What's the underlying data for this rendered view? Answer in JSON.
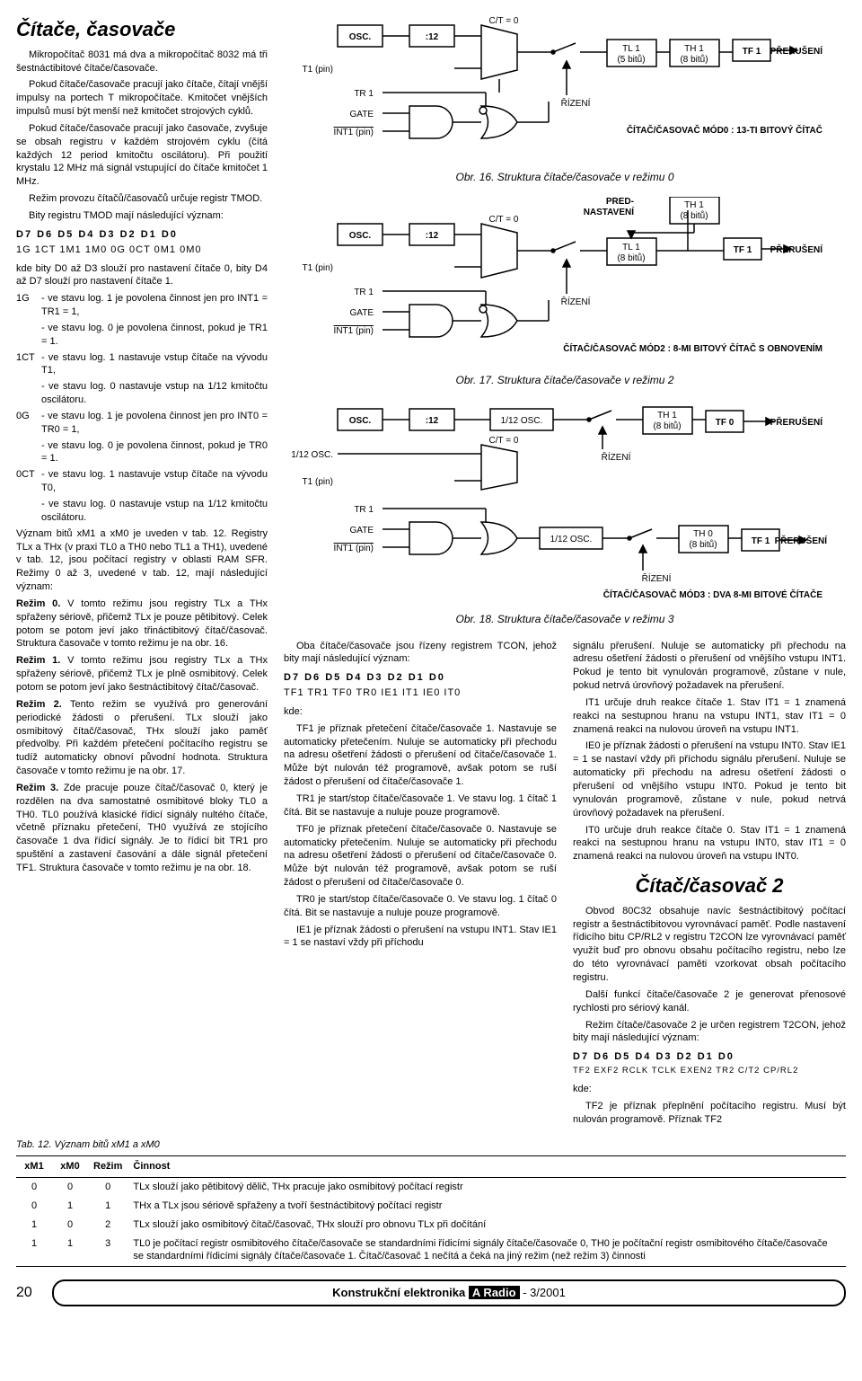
{
  "title_main": "Čítače, časovače",
  "intro": "Mikropočítač 8031 má dva a mikropočítač 8032 má tři šestnáctibitové čítače/časovače.",
  "p2": "Pokud čítače/časovače pracují jako čítače, čítají vnější impulsy na portech T mikropočítače. Kmitočet vnějších impulsů musí být menší než kmitočet strojových cyklů.",
  "p3": "Pokud čítače/časovače pracují jako časovače, zvyšuje se obsah registru v každém strojovém cyklu (čítá každých 12 period kmitočtu oscilátoru). Při použití krystalu 12 MHz má signál vstupující do čítače kmitočet 1 MHz.",
  "p4": "Režim provozu čítačů/časovačů určuje registr TMOD.",
  "p5": "Bity registru TMOD mají následující význam:",
  "bits1": "D7  D6  D5  D4  D3  D2  D1  D0",
  "bits1v": "1G  1CT  1M1 1M0  0G  0CT  0M1 0M0",
  "p6": "kde bity D0 až D3 slouží pro nastavení čítače 0, bity D4 až D7 slouží pro nastavení čítače 1.",
  "d1G_a": "- ve stavu log. 1 je povolena činnost jen pro INT1 = TR1 = 1,",
  "d1G_b": "- ve stavu log. 0 je povolena činnost, pokud je TR1 = 1.",
  "d1CT_a": "- ve stavu log. 1 nastavuje vstup čítače na vývodu T1,",
  "d1CT_b": "- ve stavu log. 0 nastavuje vstup na 1/12 kmitočtu oscilátoru.",
  "d0G_a": "- ve stavu log. 1 je povolena činnost jen pro INT0 = TR0 = 1,",
  "d0G_b": "- ve stavu log. 0 je povolena činnost, pokud je TR0 = 1.",
  "d0CT_a": "- ve stavu log. 1 nastavuje vstup čítače na vývodu T0,",
  "d0CT_b": "- ve stavu log. 0 nastavuje vstup na 1/12 kmitočtu oscilátoru.",
  "p7": "Význam bitů xM1 a xM0 je uveden v tab. 12. Registry TLx a THx (v praxi TL0 a TH0 nebo TL1 a TH1), uvedené v tab. 12, jsou počítací registry v oblasti RAM SFR. Režimy 0 až 3, uvedené v tab. 12, mají následující význam:",
  "r0": "V tomto režimu jsou registry TLx a THx spřaženy sériově, přičemž TLx je pouze pětibitový. Celek potom se potom jeví jako třináctibitový čítač/časovač. Struktura časovače v tomto režimu je na obr. 16.",
  "r1": "V tomto režimu jsou registry TLx a THx spřaženy sériově, přičemž TLx je plně osmibitový. Celek potom se potom jeví jako šestnáctibitový čítač/časovač.",
  "r2": "Tento režim se využívá pro generování periodické žádosti o přerušení. TLx slouží jako osmibitový čítač/časovač, THx slouží jako paměť předvolby. Při každém přetečení počítacího registru se tudíž automaticky obnoví původní hodnota. Struktura časovače v tomto režimu je na obr. 17.",
  "r3": "Zde pracuje pouze čítač/časovač 0, který je rozdělen na dva samostatné osmibitové bloky TL0 a TH0. TL0 používá klasické řídicí signály nultého čítače, včetně příznaku přetečení, TH0 využívá ze stojícího časovače 1 dva řídicí signály. Je to řídicí bit TR1 pro spuštění a zastavení časování a dále signál přetečení TF1. Struktura časovače v tomto režimu je na obr. 18.",
  "tab12_title": "Tab. 12. Význam bitů xM1 a xM0",
  "tab12": {
    "headers": [
      "xM1",
      "xM0",
      "Režim",
      "Činnost"
    ],
    "rows": [
      [
        "0",
        "0",
        "0",
        "TLx slouží jako pětibitový dělič, THx pracuje jako osmibitový počítací registr"
      ],
      [
        "0",
        "1",
        "1",
        "THx a TLx jsou sériově spřaženy a tvoří šestnáctibitový počítací registr"
      ],
      [
        "1",
        "0",
        "2",
        "TLx slouží jako osmibitový čítač/časovač, THx slouží pro obnovu TLx při dočítání"
      ],
      [
        "1",
        "1",
        "3",
        "TL0 je počítací registr osmibitového čítače/časovače se standardními řídicími signály čítače/časovače 0, TH0 je počítační registr osmibitového čítače/časovače se standardními řídicími signály čítače/časovače 1. Čítač/časovač 1 nečítá a čeká na jiný režim (než režim 3) činnosti"
      ]
    ]
  },
  "cap16": "Obr. 16. Struktura čítače/časovače v režimu 0",
  "cap17": "Obr. 17. Struktura čítače/časovače v režimu 2",
  "cap18": "Obr. 18. Struktura čítače/časovače v režimu 3",
  "mid_p1": "Oba čítače/časovače jsou řízeny registrem TCON, jehož bity mají následující význam:",
  "bits2": "D7  D6  D5  D4  D3  D2  D1  D0",
  "bits2v": "TF1 TR1 TF0 TR0  IE1  IT1  IE0  IT0",
  "kde": "kde:",
  "mid_tf1": "TF1 je příznak přetečení čítače/časovače 1. Nastavuje se automaticky přetečením. Nuluje se automaticky při přechodu na adresu ošetření žádosti o přerušení od čítače/časovače 1. Může být nulován též programově, avšak potom se ruší žádost o přerušení od čítače/časovače 1.",
  "mid_tr1": "TR1 je start/stop čítače/časovače 1. Ve stavu log. 1 čítač 1 čítá. Bit se nastavuje a nuluje pouze programově.",
  "mid_tf0": "TF0 je příznak přetečení čítače/časovače 0. Nastavuje se automaticky přetečením. Nuluje se automaticky při přechodu na adresu ošetření žádosti o přerušení od čítače/časovače 0. Může být nulován též programově, avšak potom se ruší žádost o přerušení od čítače/časovače 0.",
  "mid_tr0": "TR0 je start/stop čítače/časovače 0. Ve stavu log. 1 čítač 0 čítá. Bit se nastavuje a nuluje pouze programově.",
  "mid_ie1": "IE1 je příznak žádosti o přerušení na vstupu INT1. Stav IE1 = 1 se nastaví vždy při příchodu",
  "right_p1": "signálu přerušení. Nuluje se automaticky při přechodu na adresu ošetření žádosti o přerušení od vnějšího vstupu INT1. Pokud je tento bit vynulován programově, zůstane v nule, pokud netrvá úrovňový požadavek na přerušení.",
  "right_it1": "IT1 určuje druh reakce čítače 1. Stav IT1 = 1 znamená reakci na sestupnou hranu na vstupu INT1, stav IT1 = 0 znamená reakci na nulovou úroveň na vstupu INT1.",
  "right_ie0": "IE0 je příznak žádosti o přerušení na vstupu INT0. Stav IE1 = 1 se nastaví vždy při příchodu signálu přerušení. Nuluje se automaticky při přechodu na adresu ošetření žádosti o přerušení od vnějšího vstupu INT0. Pokud je tento bit vynulován programově, zůstane v nule, pokud netrvá úrovňový požadavek na přerušení.",
  "right_it0": "IT0 určuje druh reakce čítače 0. Stav IT1 = 1 znamená reakci na sestupnou hranu na vstupu INT0, stav IT1 = 0 znamená reakci na nulovou úroveň na vstupu INT0.",
  "title2": "Čítač/časovač 2",
  "cc2_p1": "Obvod 80C32 obsahuje navíc šestnáctibitový počítací registr a šestnáctibitovou vyrovnávací paměť. Podle nastavení řídicího bitu CP/RL2 v registru T2CON lze vyrovnávací paměť využít buď pro obnovu obsahu počítacího registru, nebo lze do této vyrovnávací paměti vzorkovat obsah počítacího registru.",
  "cc2_p2": "Další funkcí čítače/časovače 2 je generovat přenosové rychlosti pro sériový kanál.",
  "cc2_p3": "Režim čítače/časovače 2 je určen registrem T2CON, jehož bity mají následující význam:",
  "bits3": "D7  D6  D5  D4  D3  D2  D1  D0",
  "bits3v": "TF2 EXF2 RCLK TCLK EXEN2 TR2 C/T2 CP/RL2",
  "cc2_tf2": "TF2 je příznak přeplnění počítacího registru. Musí být nulován programově. Příznak TF2",
  "page_num": "20",
  "footer": "Konstrukční elektronika A Radio - 3/2001",
  "figs": {
    "stroke": "#000000",
    "fill": "#ffffff",
    "fig16": {
      "labels": {
        "osc": "OSC.",
        "div": ":12",
        "ct": "C/T = 0",
        "t1": "T1 (pin)",
        "tr1": "TR 1",
        "gate": "GATE",
        "int1": "INT1 (pin)",
        "tl1": "TL 1\n(5 bitů)",
        "th1": "TH 1\n(8 bitů)",
        "tf1": "TF 1",
        "int": "PŘERUŠENÍ",
        "riz": "ŘÍZENÍ",
        "note": "ČÍTAČ/ČASOVAČ MÓD0 : 13-TI BITOVÝ ČÍTAČ"
      }
    },
    "fig17": {
      "labels": {
        "osc": "OSC.",
        "div": ":12",
        "ct": "C/T = 0",
        "t1": "T1 (pin)",
        "tr1": "TR 1",
        "gate": "GATE",
        "int1": "INT1 (pin)",
        "tl1": "TL 1\n(8 bitů)",
        "th1": "TH 1\n(8 bitů)",
        "tf1": "TF 1",
        "int": "PŘERUŠENÍ",
        "riz": "ŘÍZENÍ",
        "pred": "PŘED-\nNASTAVENÍ",
        "note": "ČÍTAČ/ČASOVAČ MÓD2 : 8-MI BITOVÝ ČÍTAČ S OBNOVENÍM"
      }
    },
    "fig18": {
      "labels": {
        "osc": "OSC.",
        "div": ":12",
        "div2": "1/12 OSC.",
        "osc2": "1/12 OSC.",
        "ct": "C/T = 0",
        "t1": "T1 (pin)",
        "tr1": "TR 1",
        "gate": "GATE",
        "int1": "INT1 (pin)",
        "th1": "TH 1\n(8 bitů)",
        "tf0": "TF 0",
        "th0": "TH 0\n(8 bitů)",
        "tf1": "TF 1",
        "int": "PŘERUŠENÍ",
        "riz": "ŘÍZENÍ",
        "note": "ČÍTAČ/ČASOVAČ MÓD3 : DVA 8-MI BITOVÉ ČÍTAČE"
      }
    }
  }
}
